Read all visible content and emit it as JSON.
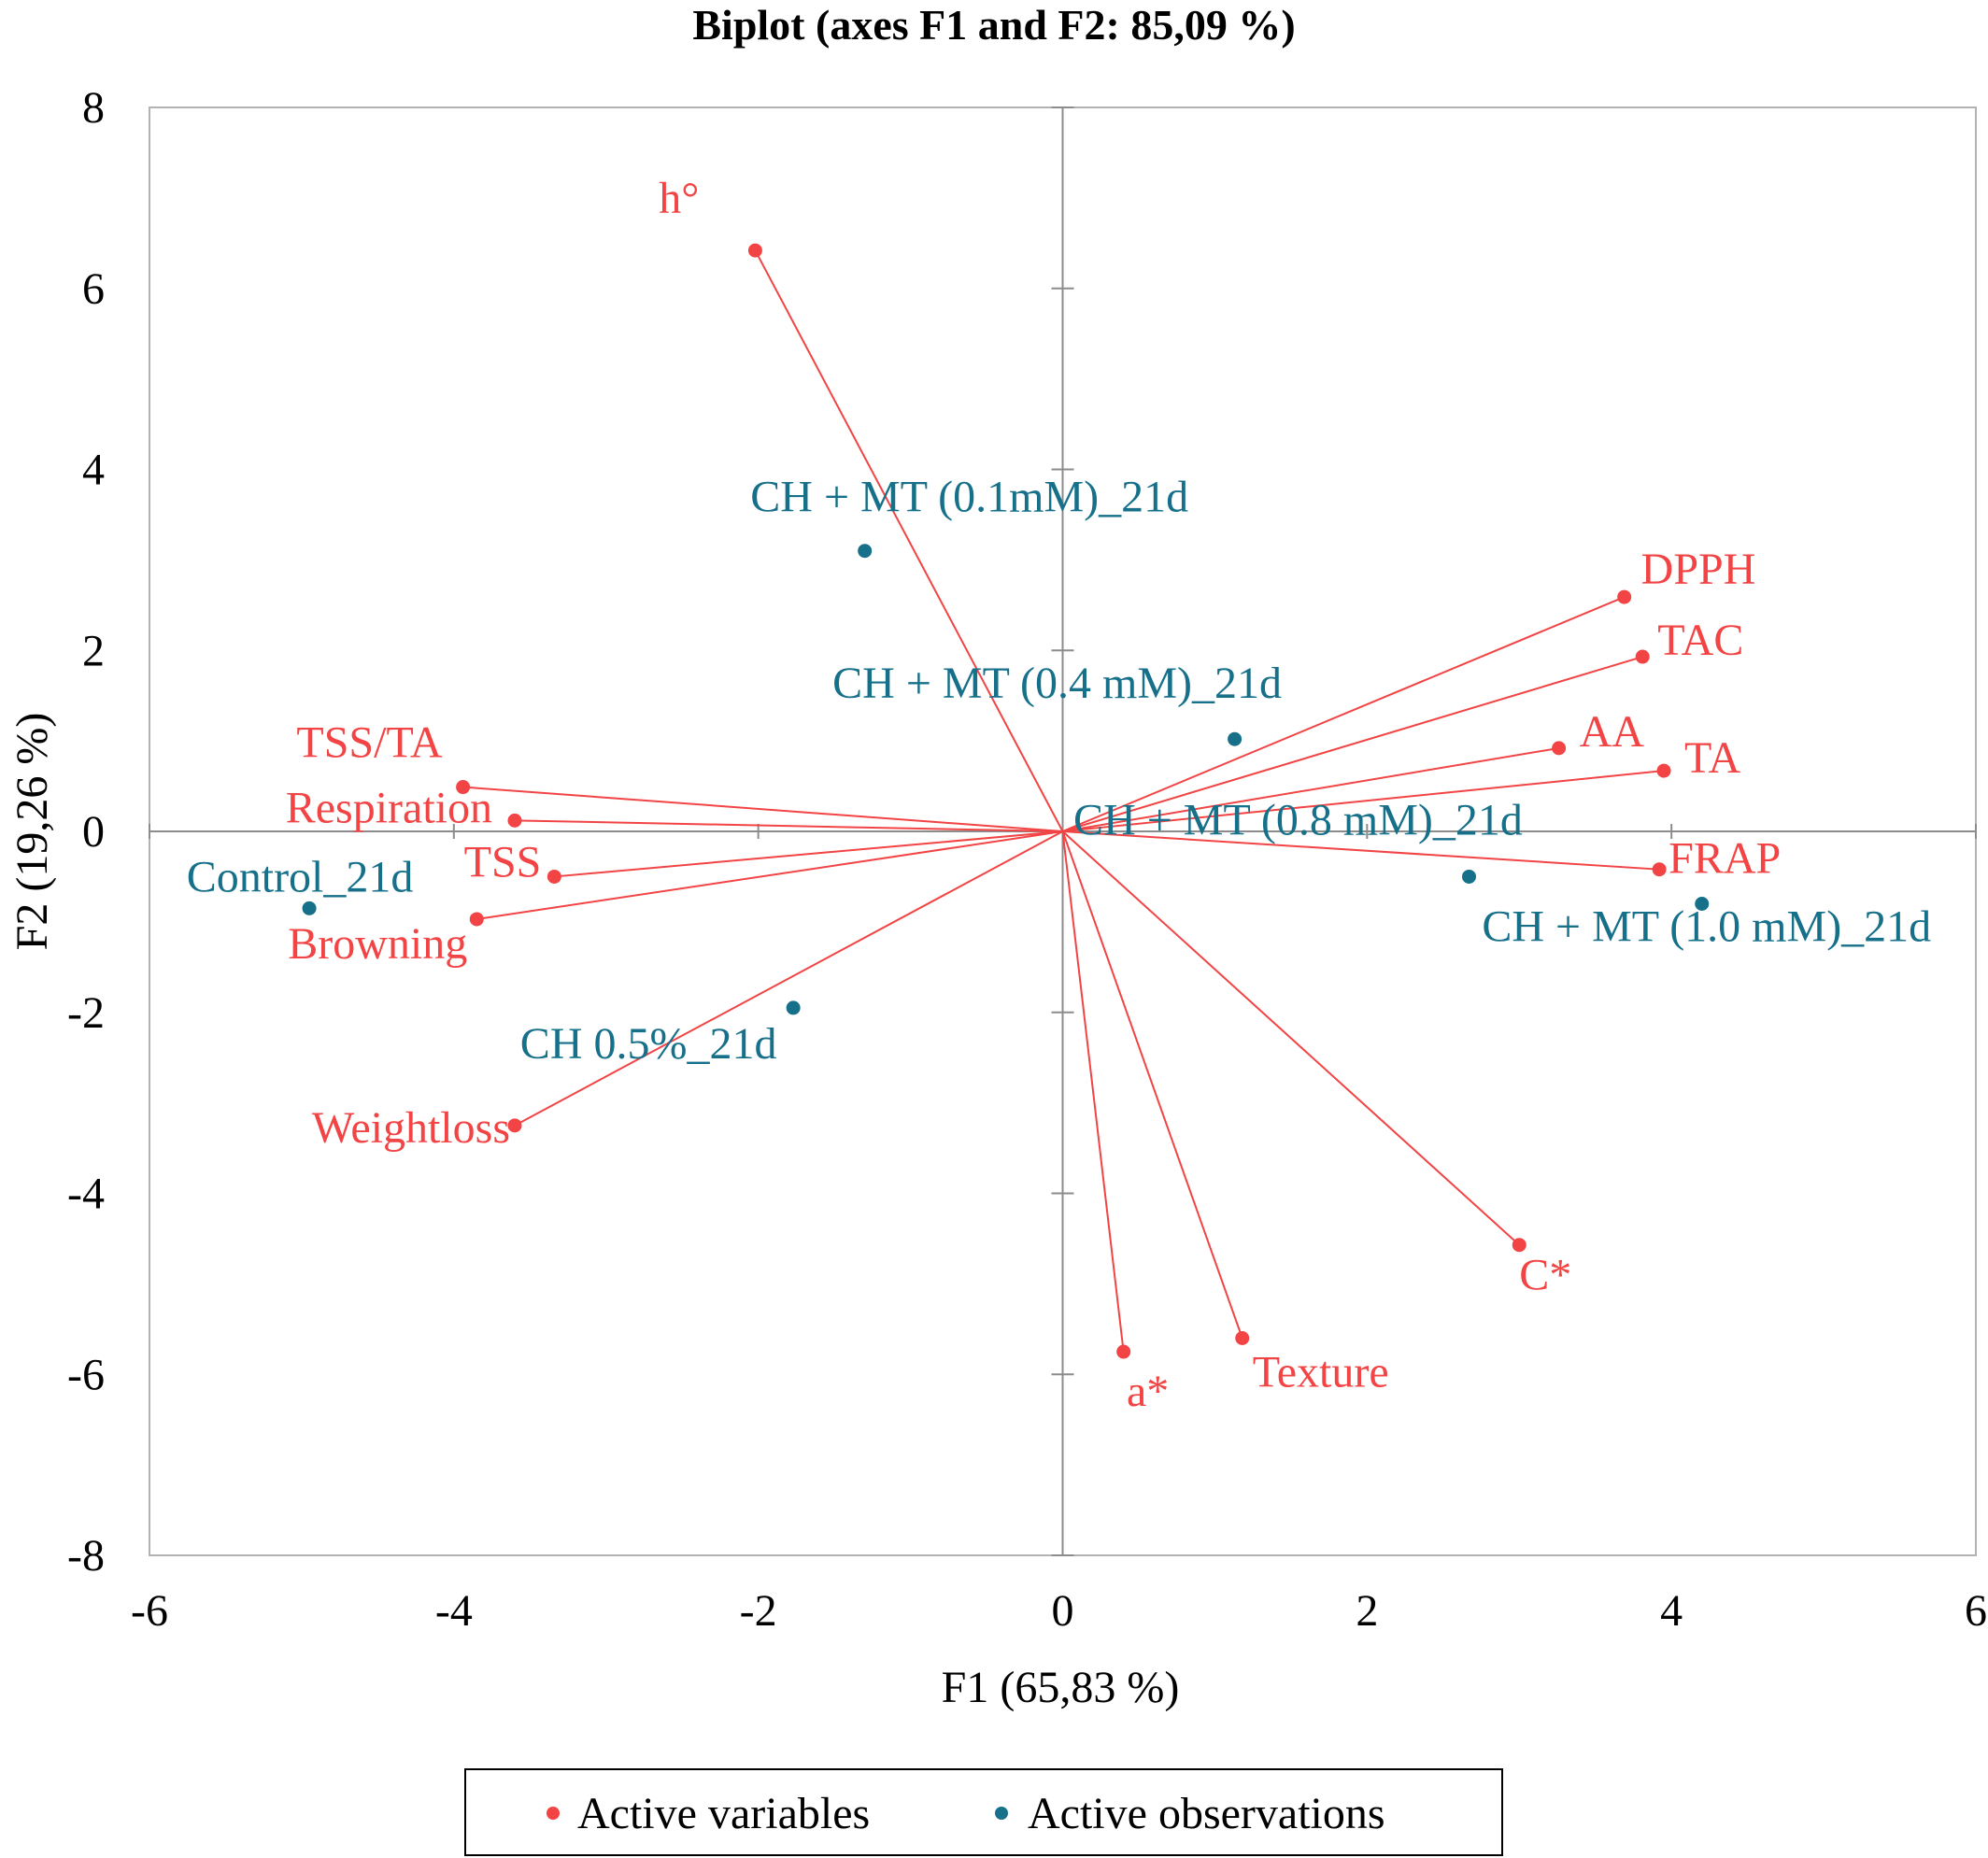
{
  "chart_data": {
    "type": "scatter",
    "title": "Biplot (axes F1 and F2: 85,09 %)",
    "xlabel": "F1 (65,83 %)",
    "ylabel": "F2 (19,26 %)",
    "xlim": [
      -6,
      6
    ],
    "ylim": [
      -8,
      8
    ],
    "x_ticks": [
      -6,
      -4,
      -2,
      0,
      2,
      4,
      6
    ],
    "y_ticks": [
      -8,
      -6,
      -4,
      -2,
      0,
      2,
      4,
      6,
      8
    ],
    "x_tick_labels": [
      "-6",
      "-4",
      "-2",
      "0",
      "2",
      "4",
      "6"
    ],
    "y_tick_labels": [
      "-8",
      "-6",
      "-4",
      "-2",
      "0",
      "2",
      "4",
      "6",
      "8"
    ],
    "grid": false,
    "legend_position": "bottom",
    "colors": {
      "variables": "#f24444",
      "observations": "#16708a",
      "axis": "#8c8c8c",
      "frame": "#b3b3b3"
    },
    "series": [
      {
        "name": "Active variables",
        "kind": "vector",
        "points": [
          {
            "label": "h°",
            "x": -2.02,
            "y": 6.42
          },
          {
            "label": "DPPH",
            "x": 3.69,
            "y": 2.59
          },
          {
            "label": "TAC",
            "x": 3.81,
            "y": 1.93
          },
          {
            "label": "AA",
            "x": 3.26,
            "y": 0.92
          },
          {
            "label": "TA",
            "x": 3.95,
            "y": 0.67
          },
          {
            "label": "FRAP",
            "x": 3.92,
            "y": -0.42
          },
          {
            "label": "TSS/TA",
            "x": -3.94,
            "y": 0.49
          },
          {
            "label": "Respiration",
            "x": -3.6,
            "y": 0.12
          },
          {
            "label": "TSS",
            "x": -3.34,
            "y": -0.5
          },
          {
            "label": "Browning",
            "x": -3.85,
            "y": -0.97
          },
          {
            "label": "Weightloss",
            "x": -3.6,
            "y": -3.25
          },
          {
            "label": "C*",
            "x": 3.0,
            "y": -4.57
          },
          {
            "label": "Texture",
            "x": 1.18,
            "y": -5.6
          },
          {
            "label": "a*",
            "x": 0.4,
            "y": -5.75
          }
        ]
      },
      {
        "name": "Active observations",
        "kind": "point",
        "points": [
          {
            "label": "CH + MT (0.1mM)_21d",
            "x": -1.3,
            "y": 3.1
          },
          {
            "label": "CH + MT (0.4 mM)_21d",
            "x": 1.13,
            "y": 1.02
          },
          {
            "label": "CH + MT (0.8 mM)_21d",
            "x": 2.67,
            "y": -0.5
          },
          {
            "label": "CH + MT (1.0 mM)_21d",
            "x": 4.2,
            "y": -0.8
          },
          {
            "label": "Control_21d",
            "x": -4.95,
            "y": -0.85
          },
          {
            "label": "CH 0.5%_21d",
            "x": -1.77,
            "y": -1.95
          }
        ]
      }
    ]
  }
}
